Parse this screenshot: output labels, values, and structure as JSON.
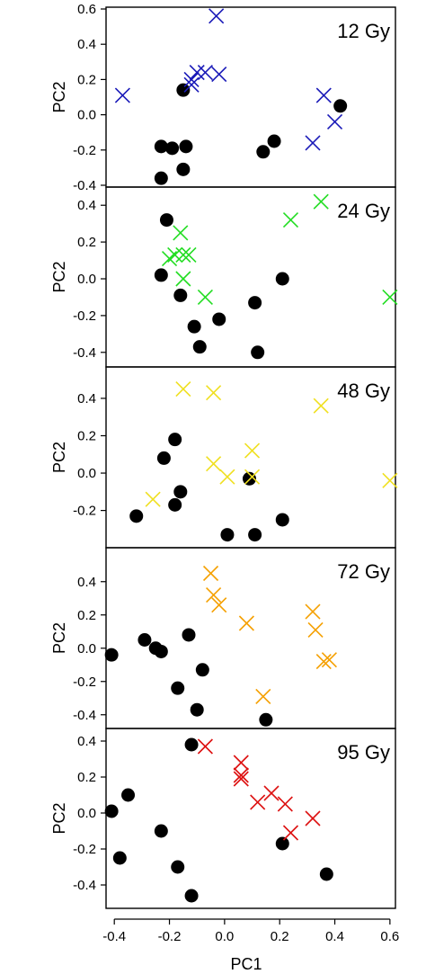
{
  "x_axis": {
    "label": "PC1",
    "ticks": [
      "-0.4",
      "-0.2",
      "0.0",
      "0.2",
      "0.4",
      "0.6"
    ]
  },
  "colors": {
    "treated_markers": "#000000",
    "12 Gy": "#1a1ab8",
    "24 Gy": "#22dd22",
    "48 Gy": "#f0e020",
    "72 Gy": "#f5a000",
    "95 Gy": "#dd1111"
  },
  "chart_data": [
    {
      "type": "scatter",
      "panel_label": "12 Gy",
      "xlabel": "PC1",
      "ylabel": "PC2",
      "xlim": [
        -0.43,
        0.62
      ],
      "ylim": [
        -0.4,
        0.6
      ],
      "yticks": [
        "-0.4",
        "-0.2",
        "0.0",
        "0.2",
        "0.4",
        "0.6"
      ],
      "cross_color": "#1a1ab8",
      "crosses": [
        [
          -0.37,
          0.11
        ],
        [
          -0.03,
          0.56
        ],
        [
          -0.12,
          0.2
        ],
        [
          -0.1,
          0.24
        ],
        [
          -0.07,
          0.24
        ],
        [
          -0.02,
          0.23
        ],
        [
          -0.12,
          0.17
        ],
        [
          0.36,
          0.11
        ],
        [
          0.4,
          -0.04
        ],
        [
          0.32,
          -0.16
        ]
      ],
      "dots": [
        [
          -0.15,
          0.14
        ],
        [
          -0.23,
          -0.18
        ],
        [
          -0.19,
          -0.19
        ],
        [
          -0.14,
          -0.18
        ],
        [
          -0.15,
          -0.31
        ],
        [
          -0.23,
          -0.36
        ],
        [
          0.14,
          -0.21
        ],
        [
          0.18,
          -0.15
        ],
        [
          0.42,
          0.05
        ]
      ]
    },
    {
      "type": "scatter",
      "panel_label": "24 Gy",
      "xlabel": "PC1",
      "ylabel": "PC2",
      "xlim": [
        -0.43,
        0.62
      ],
      "ylim": [
        -0.45,
        0.45
      ],
      "yticks": [
        "-0.4",
        "-0.2",
        "0.0",
        "0.2",
        "0.4"
      ],
      "cross_color": "#22dd22",
      "crosses": [
        [
          -0.16,
          0.25
        ],
        [
          -0.2,
          0.11
        ],
        [
          -0.18,
          0.13
        ],
        [
          -0.15,
          0.13
        ],
        [
          -0.13,
          0.13
        ],
        [
          -0.15,
          0.0
        ],
        [
          -0.07,
          -0.1
        ],
        [
          0.24,
          0.32
        ],
        [
          0.35,
          0.42
        ],
        [
          0.6,
          -0.1
        ]
      ],
      "dots": [
        [
          -0.21,
          0.32
        ],
        [
          -0.23,
          0.02
        ],
        [
          -0.16,
          -0.09
        ],
        [
          -0.11,
          -0.26
        ],
        [
          -0.09,
          -0.37
        ],
        [
          -0.02,
          -0.22
        ],
        [
          0.11,
          -0.13
        ],
        [
          0.12,
          -0.4
        ],
        [
          0.21,
          0.0
        ]
      ]
    },
    {
      "type": "scatter",
      "panel_label": "48 Gy",
      "xlabel": "PC1",
      "ylabel": "PC2",
      "xlim": [
        -0.43,
        0.62
      ],
      "ylim": [
        -0.38,
        0.52
      ],
      "yticks": [
        "-0.2",
        "0.0",
        "0.2",
        "0.4"
      ],
      "cross_color": "#f0e020",
      "crosses": [
        [
          -0.15,
          0.45
        ],
        [
          -0.04,
          0.43
        ],
        [
          -0.26,
          -0.14
        ],
        [
          -0.04,
          0.05
        ],
        [
          0.01,
          -0.02
        ],
        [
          0.1,
          0.12
        ],
        [
          0.1,
          -0.02
        ],
        [
          0.35,
          0.36
        ],
        [
          0.6,
          -0.04
        ]
      ],
      "dots": [
        [
          -0.32,
          -0.23
        ],
        [
          -0.22,
          0.08
        ],
        [
          -0.18,
          0.18
        ],
        [
          -0.16,
          -0.1
        ],
        [
          -0.18,
          -0.17
        ],
        [
          0.01,
          -0.33
        ],
        [
          0.09,
          -0.03
        ],
        [
          0.11,
          -0.33
        ],
        [
          0.21,
          -0.25
        ]
      ]
    },
    {
      "type": "scatter",
      "panel_label": "72 Gy",
      "xlabel": "PC1",
      "ylabel": "PC2",
      "xlim": [
        -0.43,
        0.62
      ],
      "ylim": [
        -0.45,
        0.55
      ],
      "yticks": [
        "-0.4",
        "-0.2",
        "0.0",
        "0.2",
        "0.4"
      ],
      "cross_color": "#f5a000",
      "crosses": [
        [
          -0.05,
          0.45
        ],
        [
          -0.04,
          0.32
        ],
        [
          -0.02,
          0.26
        ],
        [
          0.08,
          0.15
        ],
        [
          0.14,
          -0.29
        ],
        [
          0.32,
          0.22
        ],
        [
          0.33,
          0.11
        ],
        [
          0.36,
          -0.08
        ],
        [
          0.38,
          -0.07
        ]
      ],
      "dots": [
        [
          -0.41,
          -0.04
        ],
        [
          -0.29,
          0.05
        ],
        [
          -0.25,
          0.0
        ],
        [
          -0.23,
          -0.02
        ],
        [
          -0.17,
          -0.24
        ],
        [
          -0.13,
          0.08
        ],
        [
          -0.08,
          -0.13
        ],
        [
          -0.1,
          -0.37
        ],
        [
          0.15,
          -0.43
        ]
      ]
    },
    {
      "type": "scatter",
      "panel_label": "95 Gy",
      "xlabel": "PC1",
      "ylabel": "PC2",
      "xlim": [
        -0.43,
        0.62
      ],
      "ylim": [
        -0.51,
        0.43
      ],
      "yticks": [
        "-0.4",
        "-0.2",
        "0.0",
        "0.2",
        "0.4"
      ],
      "cross_color": "#dd1111",
      "crosses": [
        [
          -0.07,
          0.37
        ],
        [
          0.06,
          0.28
        ],
        [
          0.06,
          0.21
        ],
        [
          0.06,
          0.19
        ],
        [
          0.12,
          0.06
        ],
        [
          0.17,
          0.11
        ],
        [
          0.22,
          0.05
        ],
        [
          0.24,
          -0.11
        ],
        [
          0.32,
          -0.03
        ]
      ],
      "dots": [
        [
          -0.41,
          0.01
        ],
        [
          -0.35,
          0.1
        ],
        [
          -0.38,
          -0.25
        ],
        [
          -0.23,
          -0.1
        ],
        [
          -0.17,
          -0.3
        ],
        [
          -0.12,
          0.38
        ],
        [
          -0.12,
          -0.46
        ],
        [
          0.21,
          -0.17
        ],
        [
          0.37,
          -0.34
        ]
      ]
    }
  ]
}
